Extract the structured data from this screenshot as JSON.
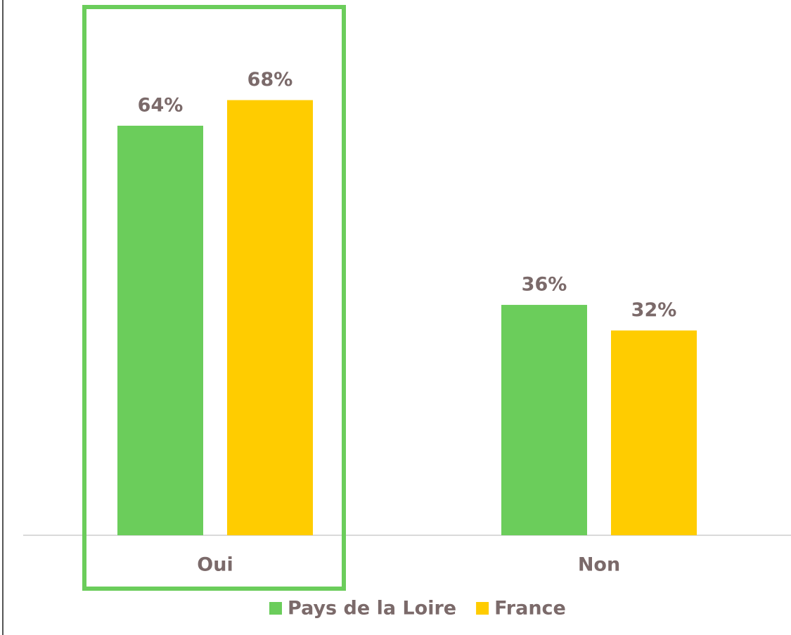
{
  "chart_data": {
    "type": "bar",
    "categories": [
      "Oui",
      "Non"
    ],
    "series": [
      {
        "name": "Pays de la Loire",
        "color": "#6bcd5b",
        "values": [
          64,
          36
        ],
        "value_labels": [
          "64%",
          "36%"
        ]
      },
      {
        "name": "France",
        "color": "#ffcc00",
        "values": [
          68,
          32
        ],
        "value_labels": [
          "68%",
          "32%"
        ]
      }
    ]
  }
}
